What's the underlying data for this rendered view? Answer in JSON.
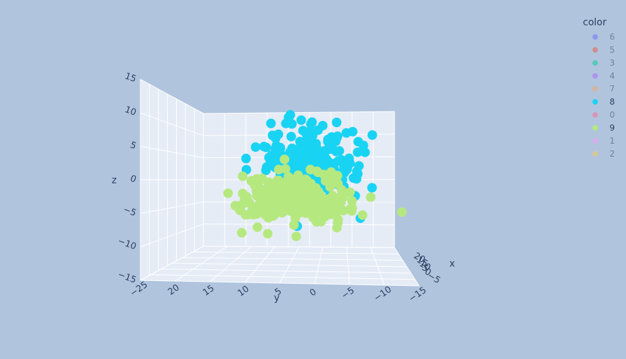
{
  "chart_data": {
    "type": "scatter3d",
    "title": "",
    "axes": {
      "x": {
        "label": "x",
        "range": [
          -8,
          24
        ],
        "ticks": [
          20,
          15,
          10,
          5,
          0,
          -5
        ],
        "tick_labels": [
          "20",
          "15",
          "10",
          "5",
          "0",
          "−5"
        ]
      },
      "y": {
        "label": "y",
        "range": [
          -17,
          27
        ],
        "ticks": [
          -25,
          20,
          15,
          10,
          5,
          0,
          -5,
          -10,
          -15
        ],
        "tick_labels": [
          "−25",
          "20",
          "15",
          "10",
          "5",
          "0",
          "−5",
          "−10",
          "−15"
        ]
      },
      "z": {
        "label": "z",
        "range": [
          -15,
          15
        ],
        "ticks": [
          15,
          10,
          5,
          0,
          -5,
          -10,
          -15
        ],
        "tick_labels": [
          "15",
          "10",
          "5",
          "0",
          "−5",
          "−10",
          "−15"
        ]
      }
    },
    "grid": true,
    "legend": {
      "title": "color",
      "placement": "top-right",
      "entries": [
        {
          "name": "6",
          "color": "#636efa",
          "visible": false
        },
        {
          "name": "5",
          "color": "#ef553b",
          "visible": false
        },
        {
          "name": "3",
          "color": "#00cc96",
          "visible": false
        },
        {
          "name": "4",
          "color": "#ab63fa",
          "visible": false
        },
        {
          "name": "7",
          "color": "#ffa15a",
          "visible": false
        },
        {
          "name": "8",
          "color": "#19d3f3",
          "visible": true
        },
        {
          "name": "0",
          "color": "#ff6692",
          "visible": false
        },
        {
          "name": "9",
          "color": "#b6e880",
          "visible": true
        },
        {
          "name": "1",
          "color": "#ff97ff",
          "visible": false
        },
        {
          "name": "2",
          "color": "#fecb52",
          "visible": false
        }
      ]
    },
    "series": [
      {
        "name": "8",
        "color": "#19d3f3",
        "center": [
          2,
          1,
          3
        ],
        "spread": [
          7,
          7,
          5
        ],
        "count": 260
      },
      {
        "name": "9",
        "color": "#b6e880",
        "center": [
          4,
          4,
          -3
        ],
        "spread": [
          6,
          8,
          3.5
        ],
        "count": 300
      }
    ]
  }
}
